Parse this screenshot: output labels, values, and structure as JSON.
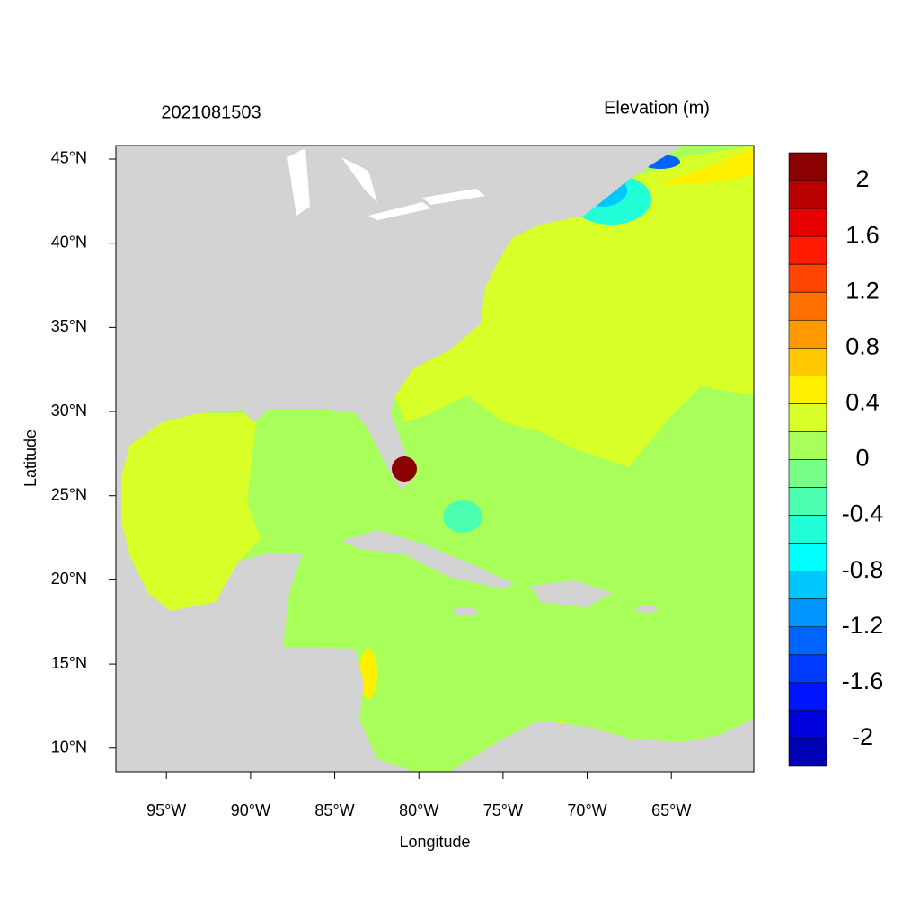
{
  "map": {
    "title_left": "2021081503",
    "title_right": "Elevation (m)",
    "x_label": "Longitude",
    "y_label": "Latitude",
    "xlim": [
      -98,
      -60.1
    ],
    "ylim": [
      8.6,
      45.8
    ],
    "xticks": [
      {
        "value": -95,
        "label": "95°W"
      },
      {
        "value": -90,
        "label": "90°W"
      },
      {
        "value": -85,
        "label": "85°W"
      },
      {
        "value": -80,
        "label": "80°W"
      },
      {
        "value": -75,
        "label": "75°W"
      },
      {
        "value": -70,
        "label": "70°W"
      },
      {
        "value": -65,
        "label": "65°W"
      }
    ],
    "yticks": [
      {
        "value": 10,
        "label": "10°N"
      },
      {
        "value": 15,
        "label": "15°N"
      },
      {
        "value": 20,
        "label": "20°N"
      },
      {
        "value": 25,
        "label": "25°N"
      },
      {
        "value": 30,
        "label": "30°N"
      },
      {
        "value": 35,
        "label": "35°N"
      },
      {
        "value": 40,
        "label": "40°N"
      },
      {
        "value": 45,
        "label": "45°N"
      }
    ],
    "colorbar": {
      "range": [
        -2.2,
        2.2
      ],
      "colors": [
        "#8b0000",
        "#b80000",
        "#e60000",
        "#ff1a00",
        "#ff4600",
        "#ff7000",
        "#ff9900",
        "#ffc800",
        "#fff000",
        "#d8ff28",
        "#a8ff5a",
        "#78ff88",
        "#4cffb0",
        "#22ffd8",
        "#00ffff",
        "#00c8ff",
        "#0096ff",
        "#0064ff",
        "#003cff",
        "#0014ff",
        "#0000dc",
        "#0000b4"
      ],
      "ticks": [
        2,
        1.6,
        1.2,
        0.8,
        0.4,
        0,
        -0.4,
        -0.8,
        -1.2,
        -1.6,
        -2
      ]
    }
  }
}
